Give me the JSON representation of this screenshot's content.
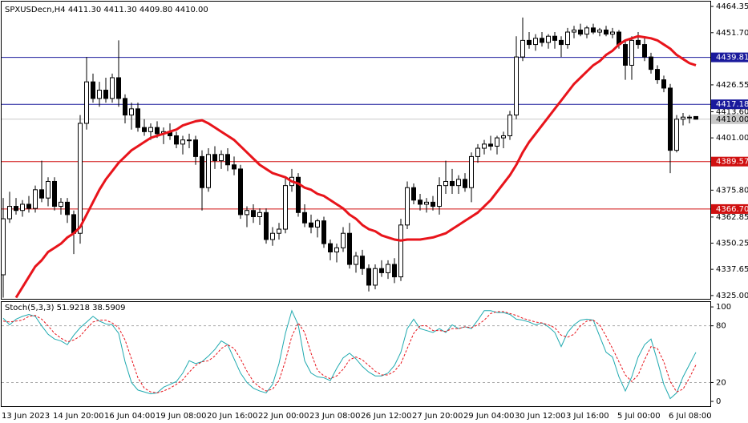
{
  "chart_data": {
    "type": "candlestick",
    "title": "SPXUSDecn,H4  4411.30 4411.30 4409.80 4410.00",
    "categories": [
      "13 Jun 2023",
      null,
      null,
      null,
      null,
      null,
      null,
      null,
      "14 Jun 20:00",
      null,
      null,
      null,
      null,
      null,
      null,
      null,
      "16 Jun 04:00",
      null,
      null,
      null,
      null,
      null,
      null,
      null,
      "19 Jun 08:00",
      null,
      null,
      null,
      null,
      null,
      null,
      null,
      "20 Jun 16:00",
      null,
      null,
      null,
      null,
      null,
      null,
      null,
      "22 Jun 00:00",
      null,
      null,
      null,
      null,
      null,
      null,
      null,
      "23 Jun 08:00",
      null,
      null,
      null,
      null,
      null,
      null,
      null,
      "26 Jun 12:00",
      null,
      null,
      null,
      null,
      null,
      null,
      null,
      "27 Jun 20:00",
      null,
      null,
      null,
      null,
      null,
      null,
      null,
      "29 Jun 04:00",
      null,
      null,
      null,
      null,
      null,
      null,
      null,
      "30 Jun 12:00",
      null,
      null,
      null,
      null,
      null,
      null,
      null,
      "3 Jul 16:00",
      null,
      null,
      null,
      null,
      null,
      null,
      null,
      "5 Jul 00:00",
      null,
      null,
      null,
      null,
      null,
      null,
      null,
      "6 Jul 08:00",
      null,
      null,
      null,
      null
    ],
    "open": [
      4335,
      4362,
      4368,
      4366,
      4369,
      4367,
      4376,
      4372,
      4380,
      4368,
      4370,
      4364,
      4355,
      4408,
      4428,
      4420,
      4424,
      4420,
      4430,
      4420,
      4412,
      4415,
      4406,
      4404,
      4406,
      4403,
      4404,
      4402,
      4398,
      4400,
      4400,
      4392,
      4377,
      4393,
      4390,
      4393,
      4388,
      4386,
      4364,
      4366,
      4363,
      4365,
      4352,
      4355,
      4357,
      4378,
      4382,
      4365,
      4360,
      4358,
      4361,
      4350,
      4346,
      4348,
      4355,
      4340,
      4344,
      4338,
      4330,
      4338,
      4336,
      4340,
      4334,
      4359,
      4377,
      4371,
      4369,
      4370,
      4368,
      4378,
      4380,
      4378,
      4381,
      4377,
      4392,
      4396,
      4398,
      4397,
      4401,
      4402,
      4412,
      4440,
      4448,
      4446,
      4449,
      4447,
      4450,
      4448,
      4446,
      4452,
      4453,
      4451,
      4454,
      4452,
      4453,
      4451,
      4452,
      4446,
      4436,
      4448,
      4446,
      4440,
      4434,
      4429,
      4425,
      4395,
      4410,
      4411,
      4411.3
    ],
    "high": [
      4372,
      4375,
      4372,
      4371,
      4373,
      4378,
      4390,
      4382,
      4382,
      4372,
      4372,
      4366,
      4412,
      4440,
      4432,
      4428,
      4430,
      4432,
      4448,
      4422,
      4418,
      4418,
      4410,
      4408,
      4409,
      4406,
      4408,
      4404,
      4402,
      4403,
      4402,
      4395,
      4396,
      4397,
      4395,
      4396,
      4392,
      4388,
      4368,
      4369,
      4367,
      4367,
      4358,
      4360,
      4382,
      4386,
      4384,
      4369,
      4364,
      4362,
      4363,
      4352,
      4350,
      4358,
      4360,
      4346,
      4347,
      4340,
      4340,
      4342,
      4342,
      4343,
      4362,
      4380,
      4379,
      4374,
      4372,
      4373,
      4382,
      4390,
      4386,
      4383,
      4384,
      4394,
      4398,
      4400,
      4402,
      4402,
      4404,
      4414,
      4450,
      4459,
      4452,
      4451,
      4452,
      4451,
      4452,
      4450,
      4454,
      4455,
      4456,
      4455,
      4456,
      4454,
      4455,
      4454,
      4453,
      4448,
      4450,
      4452,
      4449,
      4442,
      4436,
      4431,
      4427,
      4412,
      4413,
      4412,
      4411.3
    ],
    "low": [
      4324,
      4360,
      4364,
      4363,
      4365,
      4365,
      4370,
      4368,
      4366,
      4364,
      4360,
      4345,
      4350,
      4405,
      4418,
      4416,
      4418,
      4418,
      4416,
      4408,
      4405,
      4404,
      4402,
      4400,
      4401,
      4398,
      4400,
      4396,
      4393,
      4396,
      4388,
      4366,
      4375,
      4386,
      4386,
      4385,
      4383,
      4362,
      4358,
      4360,
      4359,
      4350,
      4349,
      4352,
      4355,
      4375,
      4363,
      4358,
      4355,
      4353,
      4348,
      4342,
      4341,
      4346,
      4338,
      4336,
      4335,
      4327,
      4328,
      4334,
      4333,
      4331,
      4332,
      4357,
      4369,
      4366,
      4365,
      4366,
      4364,
      4374,
      4374,
      4374,
      4375,
      4370,
      4389,
      4393,
      4395,
      4393,
      4396,
      4400,
      4410,
      4438,
      4444,
      4443,
      4445,
      4444,
      4444,
      4440,
      4444,
      4449,
      4450,
      4449,
      4451,
      4450,
      4450,
      4449,
      4444,
      4429,
      4429,
      4444,
      4438,
      4432,
      4427,
      4423,
      4384,
      4394,
      4407,
      4408,
      4409.8
    ],
    "close": [
      4362,
      4368,
      4366,
      4369,
      4367,
      4376,
      4372,
      4380,
      4368,
      4370,
      4364,
      4355,
      4408,
      4428,
      4420,
      4424,
      4420,
      4430,
      4420,
      4412,
      4415,
      4406,
      4404,
      4406,
      4403,
      4404,
      4402,
      4398,
      4400,
      4400,
      4392,
      4377,
      4393,
      4390,
      4393,
      4388,
      4386,
      4364,
      4366,
      4363,
      4365,
      4352,
      4355,
      4357,
      4378,
      4382,
      4365,
      4360,
      4358,
      4361,
      4350,
      4346,
      4348,
      4355,
      4340,
      4344,
      4338,
      4330,
      4338,
      4336,
      4340,
      4334,
      4359,
      4377,
      4371,
      4369,
      4370,
      4368,
      4378,
      4380,
      4378,
      4381,
      4377,
      4392,
      4396,
      4398,
      4397,
      4401,
      4402,
      4412,
      4440,
      4448,
      4446,
      4449,
      4447,
      4450,
      4448,
      4446,
      4452,
      4453,
      4451,
      4454,
      4452,
      4453,
      4451,
      4452,
      4446,
      4436,
      4448,
      4446,
      4440,
      4434,
      4429,
      4425,
      4395,
      4410,
      4411,
      4411,
      4410
    ],
    "up_color": "#ffffff",
    "down_color": "#000000",
    "ma": {
      "color": "#e8141b",
      "values": [
        null,
        null,
        4324,
        4329,
        4334,
        4339,
        4342,
        4346,
        4348,
        4350,
        4353,
        4355,
        4358,
        4364,
        4370,
        4376,
        4381,
        4385,
        4389,
        4392,
        4395,
        4397,
        4399,
        4401,
        4402,
        4403,
        4404,
        4405,
        4407,
        4408,
        4409,
        4409.5,
        4408,
        4406,
        4404,
        4402,
        4400,
        4397,
        4394,
        4391,
        4388,
        4386,
        4384,
        4383,
        4382,
        4380,
        4379,
        4377,
        4376,
        4374,
        4373,
        4371,
        4369,
        4367,
        4364,
        4362,
        4359,
        4357,
        4356,
        4354,
        4353,
        4352,
        4351.5,
        4352,
        4352,
        4352,
        4352.5,
        4353,
        4354,
        4355,
        4357,
        4359,
        4361,
        4363,
        4365,
        4368,
        4371,
        4375,
        4379,
        4383,
        4388,
        4394,
        4399,
        4403,
        4407,
        4411,
        4415,
        4419,
        4423,
        4427,
        4430,
        4433,
        4436,
        4438,
        4441,
        4443,
        4446,
        4448,
        4449,
        4450,
        4449.5,
        4449,
        4448,
        4446,
        4444,
        4441,
        4439,
        4437,
        4436
      ]
    },
    "ylim": [
      4323.8,
      4466.3
    ],
    "yticks": [
      {
        "value": 4464.35,
        "label": "4464.35"
      },
      {
        "value": 4451.7,
        "label": "4451.70"
      },
      {
        "value": 4426.55,
        "label": "4426.55"
      },
      {
        "value": 4413.6,
        "label": "4413.60"
      },
      {
        "value": 4401,
        "label": "4401.00"
      },
      {
        "value": 4375.8,
        "label": "4375.80"
      },
      {
        "value": 4362.85,
        "label": "4362.85"
      },
      {
        "value": 4350.25,
        "label": "4350.25"
      },
      {
        "value": 4337.65,
        "label": "4337.65"
      },
      {
        "value": 4325,
        "label": "4325.00"
      }
    ],
    "levels": [
      {
        "value": 4439.81,
        "label": "4439.81",
        "color": "#1a1a9c"
      },
      {
        "value": 4417.18,
        "label": "4417.18",
        "color": "#1a1a9c"
      },
      {
        "value": 4389.57,
        "label": "4389.57",
        "color": "#d01010"
      },
      {
        "value": 4366.7,
        "label": "4366.70",
        "color": "#d01010"
      }
    ],
    "price": {
      "value": 4410,
      "label": "4410.00",
      "color": "#c8c8c8"
    },
    "indicator": {
      "type": "line",
      "title": "Stoch(5,3,3) 51.9218 38.5909",
      "ylim": [
        -5.9,
        106
      ],
      "yticks": [
        100,
        80,
        20,
        0
      ],
      "levels": [
        80,
        20
      ],
      "series": [
        {
          "color": "#20aab0",
          "values": [
            88,
            81,
            87,
            90,
            92,
            90,
            80,
            71,
            66,
            64,
            60,
            70,
            78,
            84,
            90,
            85,
            82,
            81,
            72,
            42,
            20,
            12,
            10,
            8,
            9,
            15,
            18,
            21,
            30,
            43,
            40,
            42,
            48,
            55,
            64,
            60,
            45,
            30,
            20,
            14,
            11,
            9,
            18,
            40,
            72,
            96,
            81,
            43,
            30,
            26,
            25,
            22,
            35,
            46,
            51,
            45,
            37,
            31,
            27,
            27,
            30,
            38,
            52,
            77,
            87,
            77,
            75,
            73,
            77,
            73,
            81,
            77,
            79,
            77,
            86,
            96,
            96,
            94,
            94,
            92,
            87,
            86,
            84,
            81,
            83,
            79,
            73,
            58,
            73,
            81,
            86,
            87,
            86,
            69,
            52,
            47,
            26,
            11,
            26,
            47,
            60,
            66,
            43,
            18,
            3,
            9,
            26,
            39,
            51.9
          ]
        },
        {
          "color": "#e8141b",
          "dash": true,
          "values": [
            85,
            84,
            85,
            86,
            90,
            91,
            87,
            80,
            72,
            67,
            63,
            65,
            69,
            77,
            84,
            86,
            86,
            83,
            78,
            65,
            45,
            25,
            14,
            10,
            9,
            11,
            14,
            18,
            23,
            31,
            38,
            42,
            43,
            48,
            56,
            60,
            56,
            45,
            32,
            21,
            15,
            11,
            13,
            22,
            43,
            69,
            83,
            73,
            51,
            33,
            27,
            24,
            27,
            34,
            44,
            47,
            44,
            38,
            32,
            28,
            28,
            32,
            40,
            56,
            72,
            80,
            80,
            75,
            75,
            74,
            77,
            77,
            79,
            78,
            81,
            86,
            93,
            95,
            95,
            93,
            91,
            88,
            86,
            84,
            83,
            81,
            78,
            70,
            68,
            71,
            80,
            85,
            86,
            81,
            69,
            56,
            42,
            28,
            21,
            28,
            44,
            58,
            56,
            42,
            21,
            10,
            13,
            25,
            38.6
          ]
        }
      ]
    }
  }
}
